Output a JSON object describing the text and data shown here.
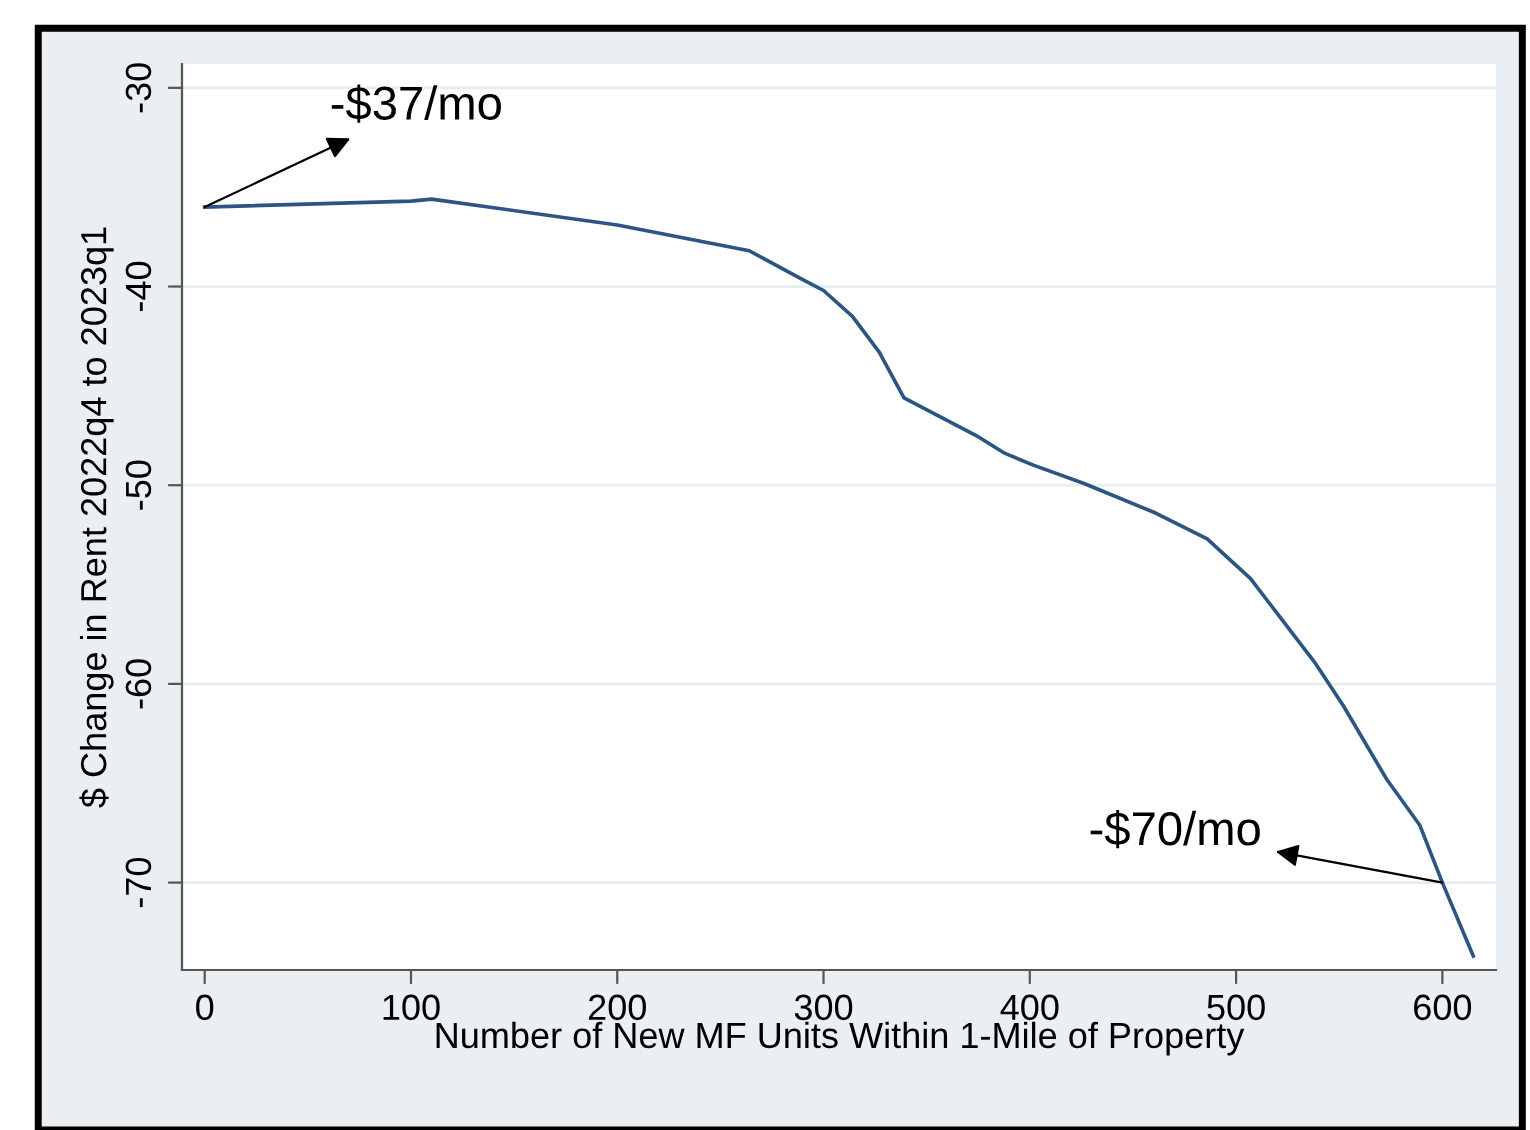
{
  "chart_data": {
    "type": "line",
    "xlabel": "Number of New MF Units Within 1-Mile of Property",
    "ylabel": "$ Change in Rent 2022q4 to 2023q1",
    "x": [
      0,
      100,
      110,
      200,
      264,
      289,
      300,
      314,
      327,
      339,
      374,
      388,
      402,
      426,
      461,
      486,
      507,
      538,
      552,
      573,
      589,
      600,
      615
    ],
    "series": [
      {
        "color": "#2b5582",
        "values": [
          -36.0,
          -35.7,
          -35.6,
          -36.9,
          -38.2,
          -39.6,
          -40.2,
          -41.5,
          -43.3,
          -45.6,
          -47.5,
          -48.4,
          -49.0,
          -49.9,
          -51.4,
          -52.7,
          -54.7,
          -58.9,
          -61.1,
          -64.8,
          -67.1,
          -70.0,
          -73.7
        ]
      }
    ],
    "xlim": [
      -11,
      626
    ],
    "ylim": [
      -74.4,
      -28.8
    ],
    "xticks": [
      0,
      100,
      200,
      300,
      400,
      500,
      600
    ],
    "yticks": [
      -30,
      -40,
      -50,
      -60,
      -70
    ],
    "grid": "y",
    "marker": "none",
    "line_style": "solid",
    "annotations": [
      {
        "text": "-$37/mo",
        "x": 0,
        "y": -36.0
      },
      {
        "text": "-$70/mo",
        "x": 600,
        "y": -70.0
      }
    ]
  }
}
